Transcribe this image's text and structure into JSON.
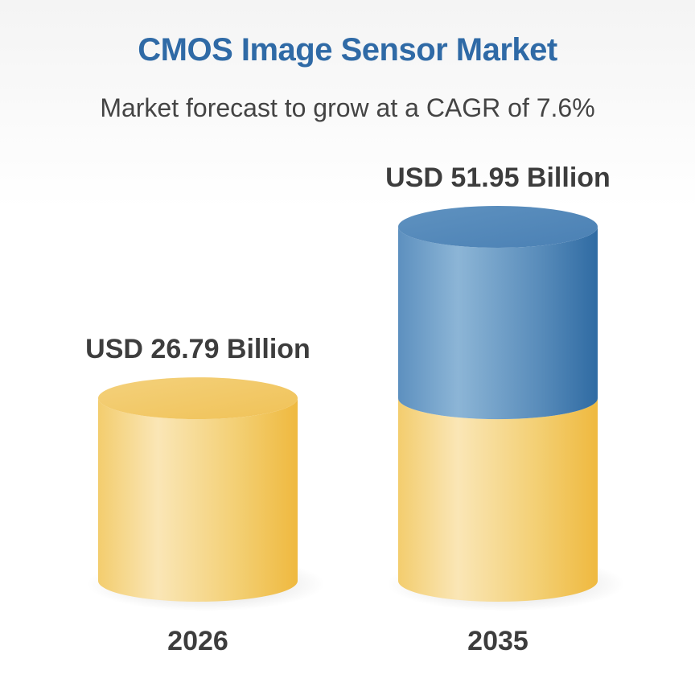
{
  "chart_data": {
    "type": "bar",
    "title": "CMOS Image Sensor Market",
    "subtitle": "Market forecast to grow at a CAGR of 7.6%",
    "categories": [
      "2026",
      "2035"
    ],
    "values": [
      26.79,
      51.95
    ],
    "value_labels": [
      "USD 26.79 Billion",
      "USD 51.95 Billion"
    ],
    "base_value": 26.79,
    "colors": {
      "base": "#f2c45a",
      "base_light": "#f9e3b0",
      "growth": "#3e7bb0",
      "growth_light": "#86b0d2",
      "title": "#2f6aa6"
    }
  }
}
